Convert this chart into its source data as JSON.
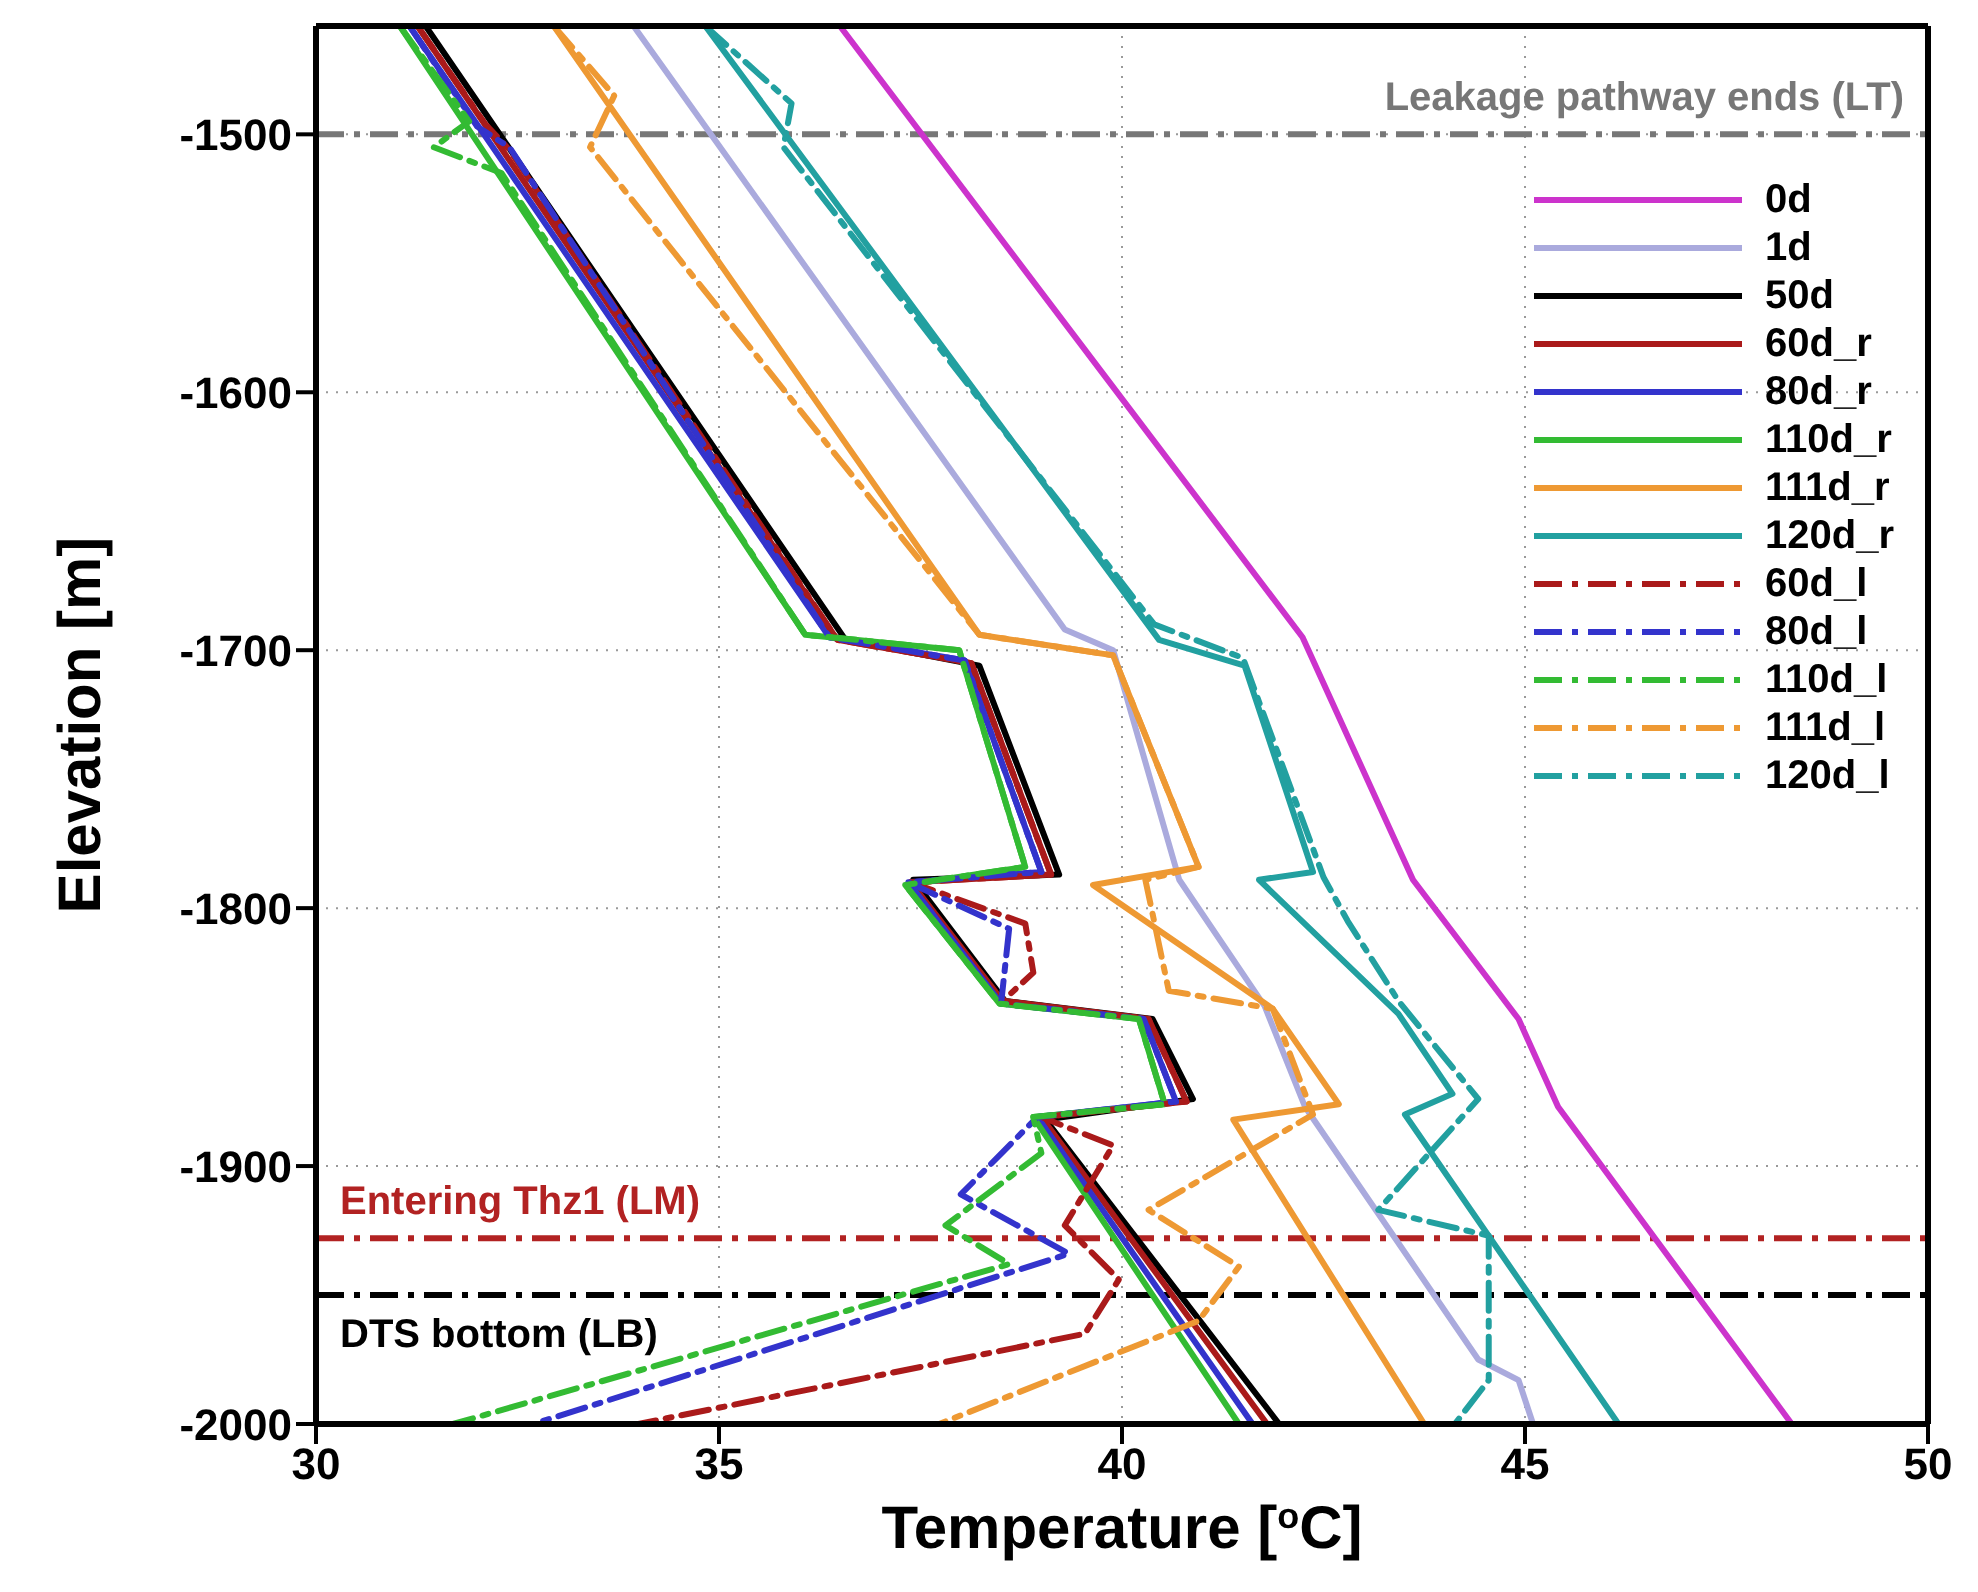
{
  "chart_data": {
    "type": "line",
    "xlabel": "Temperature [$^{o}$C]",
    "ylabel": "Elevation [m]",
    "xlim": [
      30,
      50
    ],
    "xticks": [
      30,
      35,
      40,
      45,
      50
    ],
    "ylim": [
      -2000,
      -1458
    ],
    "yticks": [
      -2000,
      -1900,
      -1800,
      -1700,
      -1600,
      -1500
    ],
    "grid": true,
    "legend": "top right",
    "ref_lines": [
      {
        "axis": "y",
        "value": -1500,
        "label": "Leakage pathway ends (LT)",
        "color": "#777777",
        "line_style": "dashed"
      },
      {
        "axis": "y",
        "value": -1928,
        "label": "Entering Thz1 (LM)",
        "color": "#b22222",
        "line_style": "dashed"
      },
      {
        "axis": "y",
        "value": -1950,
        "label": "DTS bottom (LB)",
        "color": "#000000",
        "line_style": "dashed"
      }
    ],
    "series": [
      {
        "name": "0d",
        "color": "#cc33cc",
        "line_style": "solid",
        "x": [
          36.5,
          42.24,
          43.61,
          44.92,
          45.41,
          48.31
        ],
        "values": [
          -1458,
          -1695,
          -1789,
          -1843,
          -1877,
          -2000
        ]
      },
      {
        "name": "1d",
        "color": "#aaaadd",
        "line_style": "solid",
        "x": [
          33.94,
          39.29,
          39.89,
          40.71,
          41.77,
          42.27,
          44.42,
          44.92,
          45.1
        ],
        "values": [
          -1458,
          -1692,
          -1700,
          -1789,
          -1838,
          -1877,
          -1975,
          -1983,
          -2000
        ]
      },
      {
        "name": "50d",
        "color": "#000000",
        "line_style": "solid",
        "x": [
          31.36,
          36.57,
          38.23,
          39.22,
          37.41,
          38.55,
          40.38,
          40.88,
          39.05,
          41.95
        ],
        "values": [
          -1458,
          -1696,
          -1706,
          -1787,
          -1789,
          -1836,
          -1843,
          -1874,
          -1882,
          -2000
        ]
      },
      {
        "name": "60d_r",
        "color": "#aa1a1a",
        "line_style": "solid",
        "x": [
          31.26,
          36.47,
          38.13,
          39.12,
          37.38,
          38.52,
          40.33,
          40.8,
          39.0,
          41.8
        ],
        "values": [
          -1458,
          -1696,
          -1705,
          -1787,
          -1790,
          -1836,
          -1843,
          -1875,
          -1881,
          -2000
        ]
      },
      {
        "name": "80d_r",
        "color": "#3333cc",
        "line_style": "solid",
        "x": [
          31.16,
          36.37,
          38.05,
          39.0,
          37.35,
          38.5,
          40.27,
          40.67,
          38.95,
          41.62
        ],
        "values": [
          -1458,
          -1695,
          -1704,
          -1786,
          -1790,
          -1837,
          -1843,
          -1875,
          -1881,
          -2000
        ]
      },
      {
        "name": "110d_r",
        "color": "#33bb33",
        "line_style": "solid",
        "x": [
          31.04,
          36.07,
          37.98,
          38.8,
          37.31,
          38.48,
          40.21,
          40.53,
          38.9,
          41.45
        ],
        "values": [
          -1458,
          -1694,
          -1700,
          -1784,
          -1791,
          -1837,
          -1843,
          -1876,
          -1881,
          -2000
        ]
      },
      {
        "name": "111d_r",
        "color": "#ee9933",
        "line_style": "solid",
        "x": [
          32.95,
          38.23,
          39.89,
          40.95,
          39.64,
          41.87,
          42.69,
          41.38,
          43.75
        ],
        "values": [
          -1458,
          -1694,
          -1702,
          -1784,
          -1791,
          -1839,
          -1876,
          -1882,
          -2000
        ]
      },
      {
        "name": "120d_r",
        "color": "#22a0a0",
        "line_style": "solid",
        "x": [
          34.83,
          40.46,
          41.52,
          42.37,
          41.7,
          43.43,
          44.1,
          43.51,
          46.16
        ],
        "values": [
          -1458,
          -1696,
          -1706,
          -1786,
          -1789,
          -1841,
          -1872,
          -1880,
          -2000
        ]
      },
      {
        "name": "60d_l",
        "color": "#aa1a1a",
        "line_style": "dashed",
        "x": [
          31.26,
          32.1,
          32.4,
          36.47,
          38.13,
          39.12,
          37.38,
          38.8,
          38.9,
          38.52,
          40.33,
          40.8,
          39.0,
          39.89,
          39.29,
          39.96,
          39.54,
          34.0
        ],
        "values": [
          -1458,
          -1496,
          -1506,
          -1696,
          -1705,
          -1787,
          -1790,
          -1806,
          -1825,
          -1836,
          -1843,
          -1875,
          -1881,
          -1892,
          -1923,
          -1944,
          -1965,
          -2000
        ]
      },
      {
        "name": "80d_l",
        "color": "#3333cc",
        "line_style": "dashed",
        "x": [
          31.16,
          32.0,
          32.4,
          36.37,
          38.05,
          39.0,
          37.35,
          38.6,
          38.5,
          40.27,
          40.67,
          38.95,
          38.0,
          39.34,
          32.7
        ],
        "values": [
          -1458,
          -1497,
          -1505,
          -1695,
          -1704,
          -1786,
          -1790,
          -1808,
          -1837,
          -1843,
          -1875,
          -1881,
          -1911,
          -1934,
          -2000
        ]
      },
      {
        "name": "110d_l",
        "color": "#33bb33",
        "line_style": "dashed",
        "x": [
          31.04,
          31.9,
          31.46,
          32.3,
          36.07,
          37.98,
          38.8,
          37.31,
          38.48,
          40.21,
          40.53,
          38.9,
          39.0,
          37.81,
          38.6,
          31.7
        ],
        "values": [
          -1458,
          -1495,
          -1505,
          -1515,
          -1694,
          -1700,
          -1784,
          -1791,
          -1837,
          -1843,
          -1876,
          -1881,
          -1895,
          -1923,
          -1938,
          -2000
        ]
      },
      {
        "name": "111d_l",
        "color": "#ee9933",
        "line_style": "dashed",
        "x": [
          32.95,
          33.7,
          33.4,
          38.23,
          39.89,
          40.95,
          40.29,
          40.58,
          41.87,
          42.37,
          40.33,
          41.45,
          40.95,
          37.73
        ],
        "values": [
          -1458,
          -1485,
          -1505,
          -1694,
          -1702,
          -1784,
          -1789,
          -1832,
          -1839,
          -1880,
          -1917,
          -1939,
          -1960,
          -2000
        ]
      },
      {
        "name": "120d_l",
        "color": "#22a0a0",
        "line_style": "dashed",
        "x": [
          34.83,
          35.9,
          35.8,
          40.4,
          41.5,
          42.5,
          42.8,
          43.43,
          44.42,
          43.18,
          44.55,
          44.55,
          44.13
        ],
        "values": [
          -1458,
          -1488,
          -1505,
          -1690,
          -1703,
          -1788,
          -1805,
          -1836,
          -1874,
          -1917,
          -1927,
          -1983,
          -2000
        ]
      }
    ]
  }
}
